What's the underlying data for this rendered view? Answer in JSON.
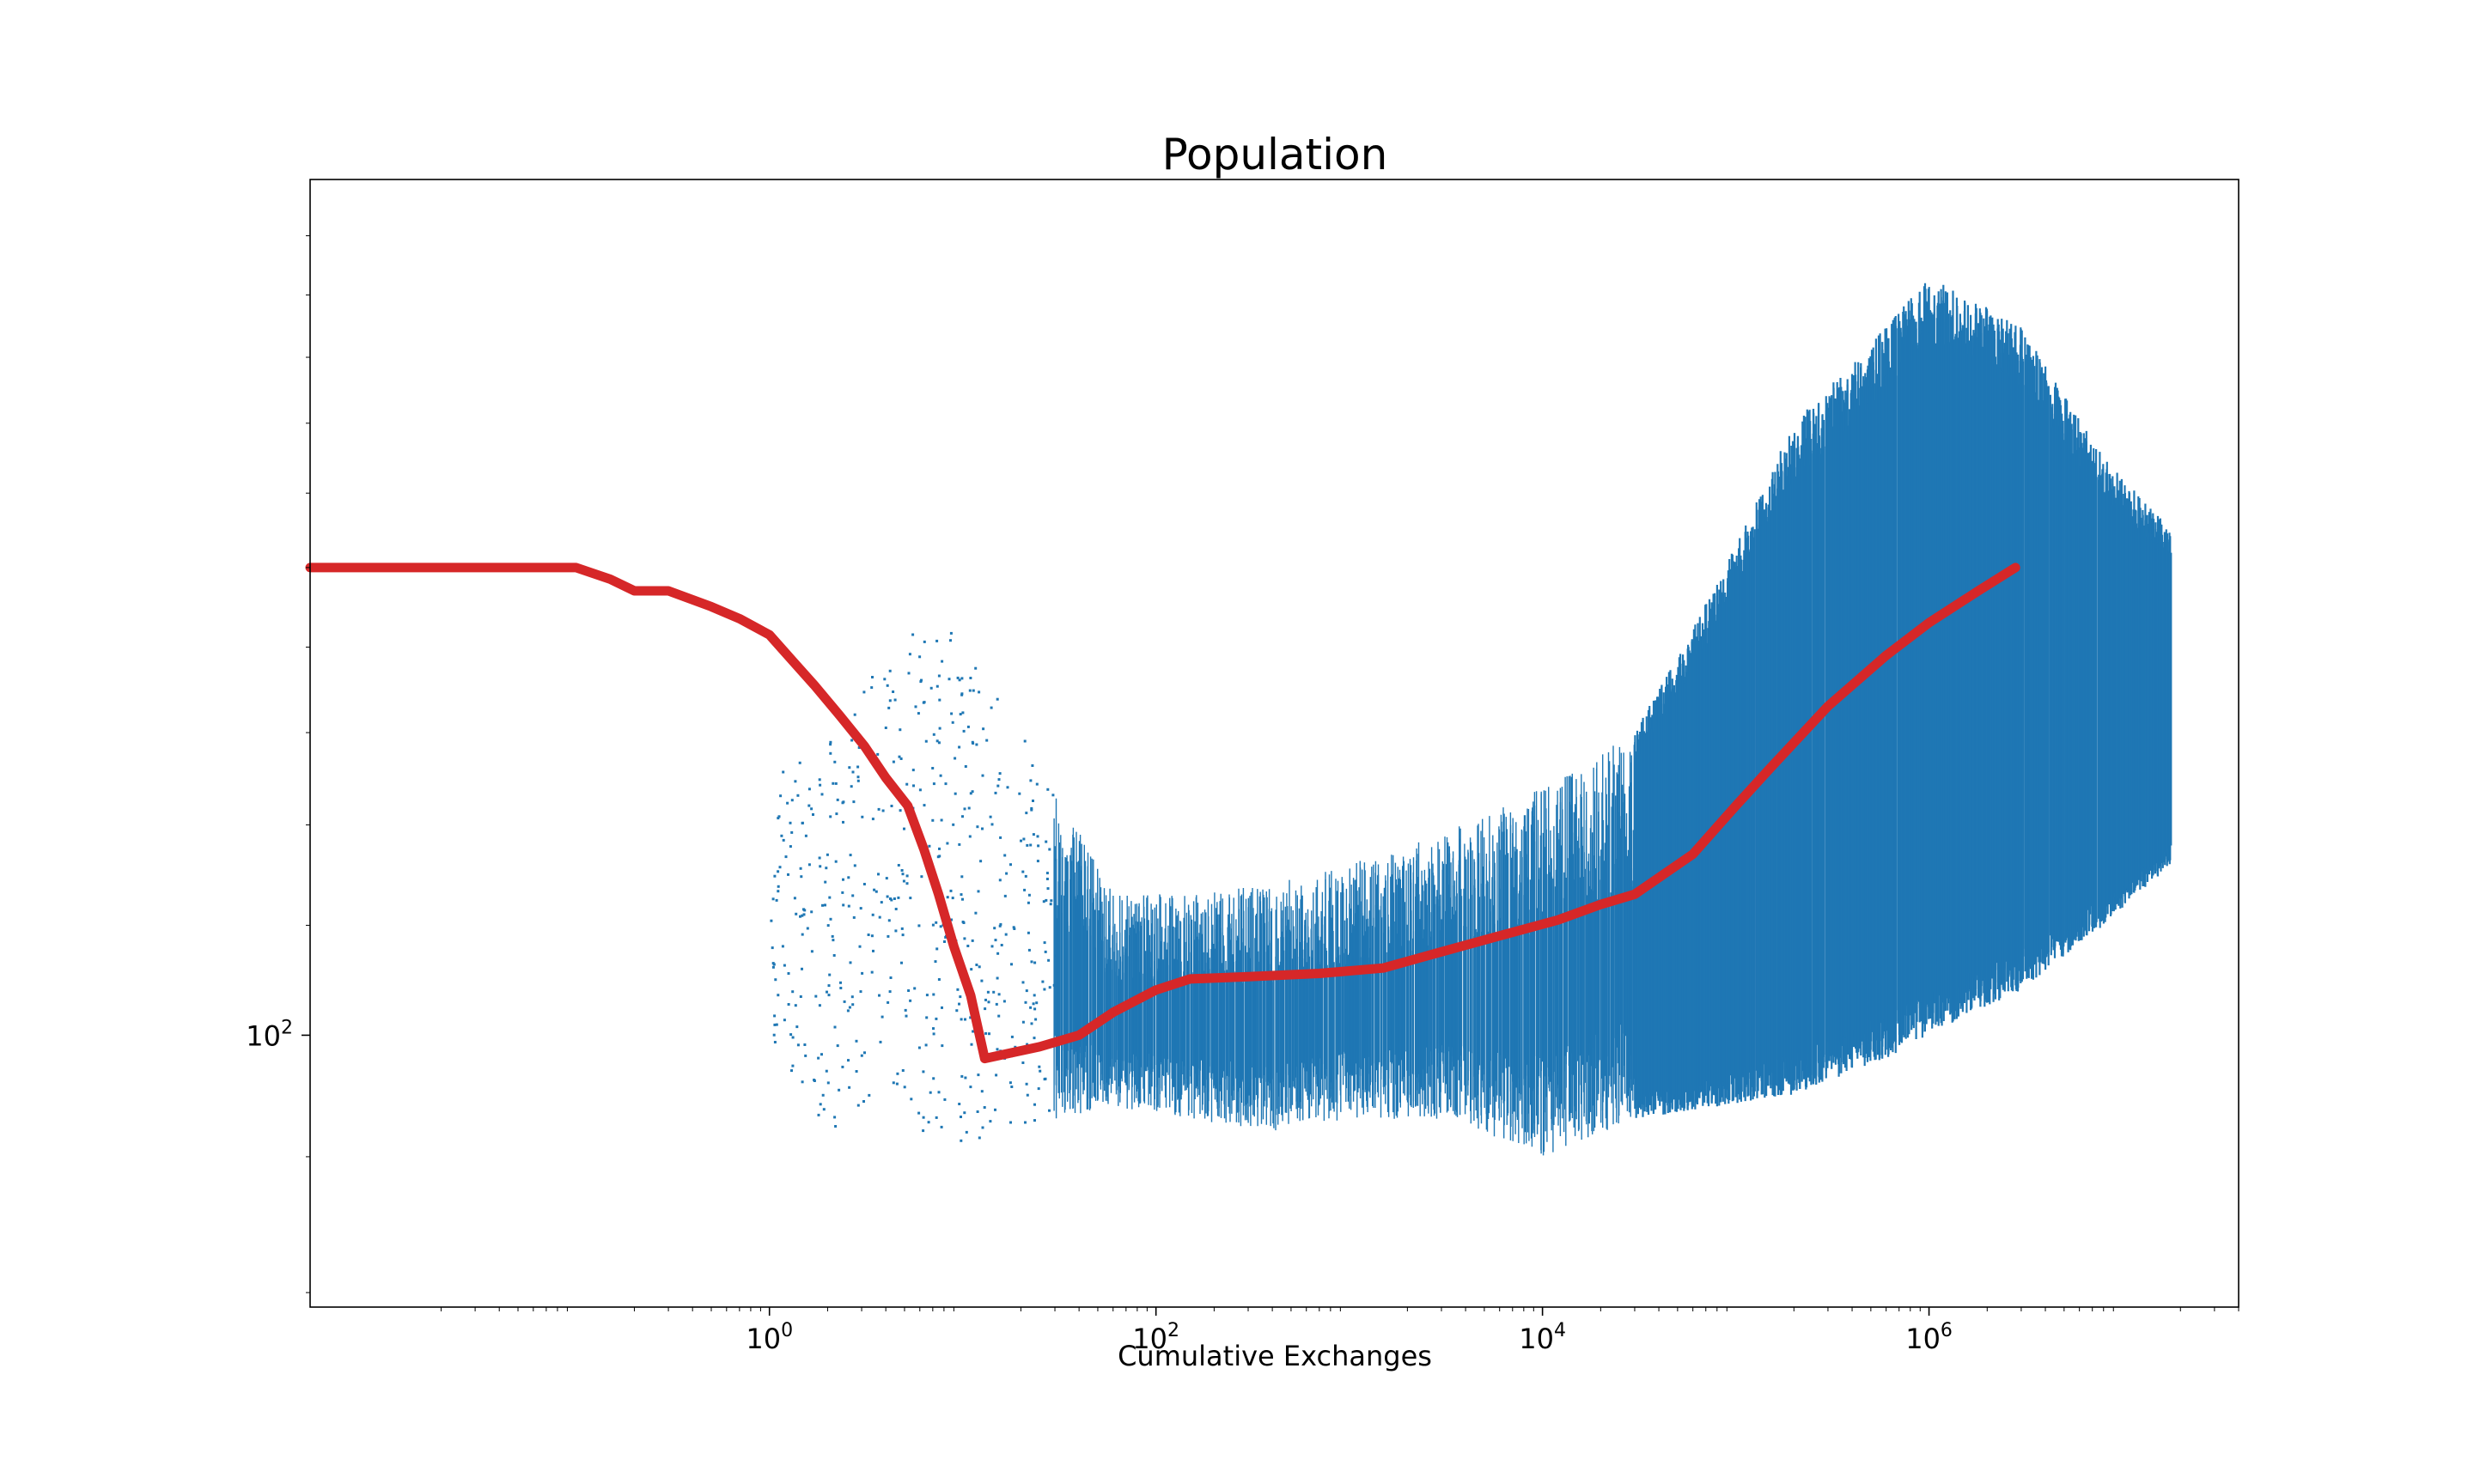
{
  "chart_data": {
    "type": "scatter",
    "title": "Population",
    "xlabel": "Cumulative Exchanges",
    "ylabel": "",
    "xscale": "log",
    "yscale": "log",
    "xlim": [
      0.0042,
      40000000
    ],
    "ylim": [
      79,
      210
    ],
    "grid": false,
    "legend": "none",
    "x_ticks": [
      {
        "value": 1,
        "base": "10",
        "exp": "0"
      },
      {
        "value": 100,
        "base": "10",
        "exp": "2"
      },
      {
        "value": 10000,
        "base": "10",
        "exp": "4"
      },
      {
        "value": 1000000,
        "base": "10",
        "exp": "6"
      }
    ],
    "y_ticks": [
      {
        "value": 100,
        "base": "10",
        "exp": "2"
      }
    ],
    "colors": {
      "scatter": "#1f77b4",
      "mean_line": "#d62728",
      "frame": "#000000"
    },
    "series": [
      {
        "kind": "scatter",
        "envelope": [
          {
            "x": 1,
            "low": 99,
            "high": 125
          },
          {
            "x": 2,
            "low": 92,
            "high": 130
          },
          {
            "x": 4,
            "low": 96,
            "high": 140
          },
          {
            "x": 6,
            "low": 92,
            "high": 143
          },
          {
            "x": 9,
            "low": 91,
            "high": 142
          },
          {
            "x": 15,
            "low": 92,
            "high": 134
          },
          {
            "x": 30,
            "low": 93,
            "high": 124
          },
          {
            "x": 60,
            "low": 94,
            "high": 113
          },
          {
            "x": 150,
            "low": 93,
            "high": 113
          },
          {
            "x": 400,
            "low": 92,
            "high": 114
          },
          {
            "x": 1000,
            "low": 93,
            "high": 116
          },
          {
            "x": 3000,
            "low": 93,
            "high": 119
          },
          {
            "x": 10000,
            "low": 90,
            "high": 124
          },
          {
            "x": 30000,
            "low": 93,
            "high": 130
          },
          {
            "x": 80000,
            "low": 94,
            "high": 148
          },
          {
            "x": 200000,
            "low": 95,
            "high": 170
          },
          {
            "x": 600000,
            "low": 98,
            "high": 185
          },
          {
            "x": 1000000,
            "low": 100,
            "high": 193
          },
          {
            "x": 3000000,
            "low": 104,
            "high": 185
          },
          {
            "x": 8000000,
            "low": 110,
            "high": 165
          },
          {
            "x": 18000000,
            "low": 116,
            "high": 155
          }
        ]
      },
      {
        "kind": "line",
        "points": [
          [
            0.0042,
            150
          ],
          [
            0.1,
            150
          ],
          [
            0.15,
            148.5
          ],
          [
            0.2,
            147
          ],
          [
            0.3,
            147
          ],
          [
            0.5,
            145
          ],
          [
            0.7,
            143.5
          ],
          [
            1,
            141.5
          ],
          [
            1.3,
            138.5
          ],
          [
            1.7,
            135.5
          ],
          [
            2.3,
            132
          ],
          [
            3.1,
            128.5
          ],
          [
            4,
            125
          ],
          [
            5.2,
            122
          ],
          [
            6.3,
            117.5
          ],
          [
            7.5,
            113
          ],
          [
            9,
            108
          ],
          [
            11,
            103.5
          ],
          [
            13,
            98
          ],
          [
            18,
            98.5
          ],
          [
            25,
            99
          ],
          [
            40,
            100
          ],
          [
            60,
            102
          ],
          [
            100,
            104
          ],
          [
            150,
            105
          ],
          [
            300,
            105.2
          ],
          [
            700,
            105.5
          ],
          [
            1500,
            106
          ],
          [
            3000,
            107.5
          ],
          [
            6000,
            109
          ],
          [
            12000,
            110.5
          ],
          [
            20000,
            112
          ],
          [
            30000,
            113
          ],
          [
            60000,
            117
          ],
          [
            100000,
            122
          ],
          [
            150000,
            126
          ],
          [
            300000,
            133
          ],
          [
            600000,
            139
          ],
          [
            1000000,
            143
          ],
          [
            1800000,
            147
          ],
          [
            2800000,
            150
          ]
        ]
      }
    ]
  }
}
